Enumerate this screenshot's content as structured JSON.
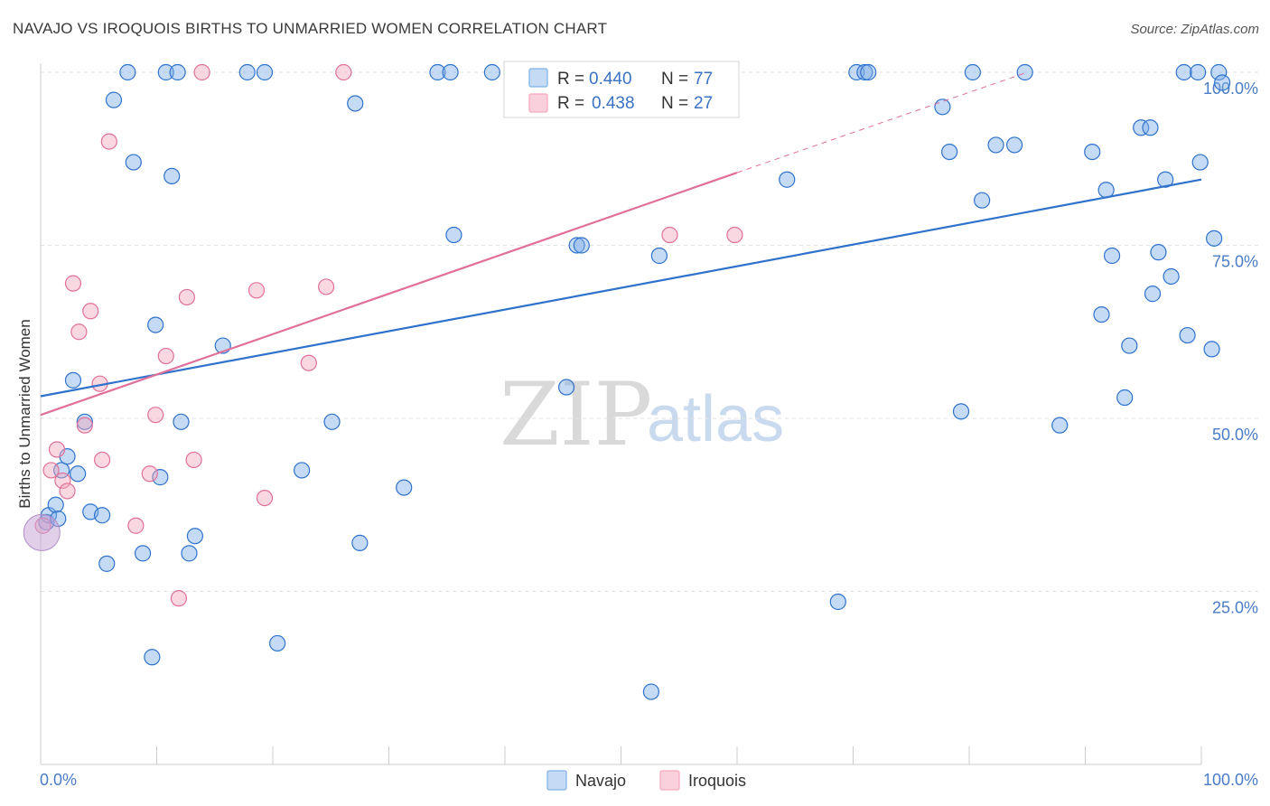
{
  "header": {
    "title": "NAVAJO VS IROQUOIS BIRTHS TO UNMARRIED WOMEN CORRELATION CHART",
    "source": "Source: ZipAtlas.com"
  },
  "watermark": {
    "zip": "ZIP",
    "atlas": "atlas"
  },
  "legend": {
    "navajo": {
      "r_label": "R =",
      "r_value": "0.440",
      "n_label": "N =",
      "n_value": "77"
    },
    "iroquois": {
      "r_label": "R =",
      "r_value": "0.438",
      "n_label": "N =",
      "n_value": "27"
    }
  },
  "chart_data": {
    "type": "scatter",
    "title": "NAVAJO VS IROQUOIS BIRTHS TO UNMARRIED WOMEN CORRELATION CHART",
    "xlabel": "",
    "ylabel": "Births to Unmarried Women",
    "xlim": [
      0,
      100
    ],
    "ylim": [
      0,
      100
    ],
    "x_tick_labels": [
      "0.0%",
      "100.0%"
    ],
    "y_ticks": [
      25,
      50,
      75,
      100
    ],
    "y_tick_labels": [
      "25.0%",
      "50.0%",
      "75.0%",
      "100.0%"
    ],
    "grid": true,
    "colors": {
      "navajo": "#7fb0e8",
      "navajo_line": "#2f72cc",
      "iroquois": "#f4a8bd",
      "iroquois_line": "#e0709a",
      "tick": "#4a7cc7"
    },
    "series": [
      {
        "name": "Navajo",
        "R": 0.44,
        "N": 77,
        "trend": {
          "x0": 0,
          "y0": 53.2,
          "x1": 100,
          "y1": 84.5
        },
        "points": [
          [
            0.5,
            35
          ],
          [
            0.7,
            36
          ],
          [
            1.3,
            37.5
          ],
          [
            1.8,
            42.5
          ],
          [
            2.3,
            44.5
          ],
          [
            2.8,
            55.5
          ],
          [
            3.2,
            42
          ],
          [
            3.8,
            49.5
          ],
          [
            4.3,
            36.5
          ],
          [
            5.3,
            36
          ],
          [
            5.7,
            29
          ],
          [
            6.3,
            96
          ],
          [
            7.5,
            100
          ],
          [
            8,
            87
          ],
          [
            8.8,
            30.5
          ],
          [
            9.6,
            15.5
          ],
          [
            9.9,
            63.5
          ],
          [
            10.3,
            41.5
          ],
          [
            10.8,
            100
          ],
          [
            11.3,
            85
          ],
          [
            11.8,
            100
          ],
          [
            12.1,
            49.5
          ],
          [
            12.8,
            30.5
          ],
          [
            13.3,
            33
          ],
          [
            15.7,
            60.5
          ],
          [
            17.8,
            100
          ],
          [
            19.3,
            100
          ],
          [
            20.4,
            17.5
          ],
          [
            22.5,
            42.5
          ],
          [
            25.1,
            49.5
          ],
          [
            27.1,
            95.5
          ],
          [
            27.5,
            32
          ],
          [
            31.3,
            40
          ],
          [
            34.2,
            100
          ],
          [
            35.3,
            100
          ],
          [
            35.6,
            76.5
          ],
          [
            38.9,
            100
          ],
          [
            45.3,
            54.5
          ],
          [
            46.2,
            75
          ],
          [
            46.6,
            75
          ],
          [
            52.6,
            10.5
          ],
          [
            53.3,
            73.5
          ],
          [
            64.3,
            84.5
          ],
          [
            68.7,
            23.5
          ],
          [
            70.3,
            100
          ],
          [
            71,
            100
          ],
          [
            71.3,
            100
          ],
          [
            77.7,
            95
          ],
          [
            78.3,
            88.5
          ],
          [
            79.3,
            51
          ],
          [
            80.3,
            100
          ],
          [
            81.1,
            81.5
          ],
          [
            82.3,
            89.5
          ],
          [
            83.9,
            89.5
          ],
          [
            84.8,
            100
          ],
          [
            87.8,
            49
          ],
          [
            90.6,
            88.5
          ],
          [
            91.4,
            65
          ],
          [
            91.8,
            83
          ],
          [
            92.3,
            73.5
          ],
          [
            93.4,
            53
          ],
          [
            93.8,
            60.5
          ],
          [
            94.8,
            92
          ],
          [
            95.6,
            92
          ],
          [
            95.8,
            68
          ],
          [
            96.3,
            74
          ],
          [
            96.9,
            84.5
          ],
          [
            97.4,
            70.5
          ],
          [
            98.5,
            100
          ],
          [
            98.8,
            62
          ],
          [
            99.7,
            100
          ],
          [
            99.9,
            87
          ],
          [
            100.9,
            60
          ],
          [
            101.1,
            76
          ],
          [
            101.5,
            100
          ],
          [
            101.8,
            98.5
          ],
          [
            1.5,
            35.5
          ]
        ]
      },
      {
        "name": "Iroquois",
        "R": 0.438,
        "N": 27,
        "trend": {
          "x0": 0,
          "y0": 50.5,
          "x1": 60,
          "y1": 85.5,
          "dash_to_x": 85,
          "dash_to_y": 100
        },
        "points": [
          [
            0.2,
            34.5
          ],
          [
            0.9,
            42.5
          ],
          [
            1.4,
            45.5
          ],
          [
            1.9,
            41
          ],
          [
            2.3,
            39.5
          ],
          [
            2.8,
            69.5
          ],
          [
            3.3,
            62.5
          ],
          [
            3.8,
            49
          ],
          [
            4.3,
            65.5
          ],
          [
            5.1,
            55
          ],
          [
            5.3,
            44
          ],
          [
            5.9,
            90
          ],
          [
            8.2,
            34.5
          ],
          [
            9.4,
            42
          ],
          [
            9.9,
            50.5
          ],
          [
            10.8,
            59
          ],
          [
            11.9,
            24
          ],
          [
            12.6,
            67.5
          ],
          [
            13.2,
            44
          ],
          [
            13.9,
            100
          ],
          [
            18.6,
            68.5
          ],
          [
            19.3,
            38.5
          ],
          [
            23.1,
            58
          ],
          [
            24.6,
            69
          ],
          [
            26.1,
            100
          ],
          [
            54.2,
            76.5
          ],
          [
            59.8,
            76.5
          ]
        ]
      }
    ]
  },
  "bottom_legend": {
    "navajo": "Navajo",
    "iroquois": "Iroquois"
  }
}
